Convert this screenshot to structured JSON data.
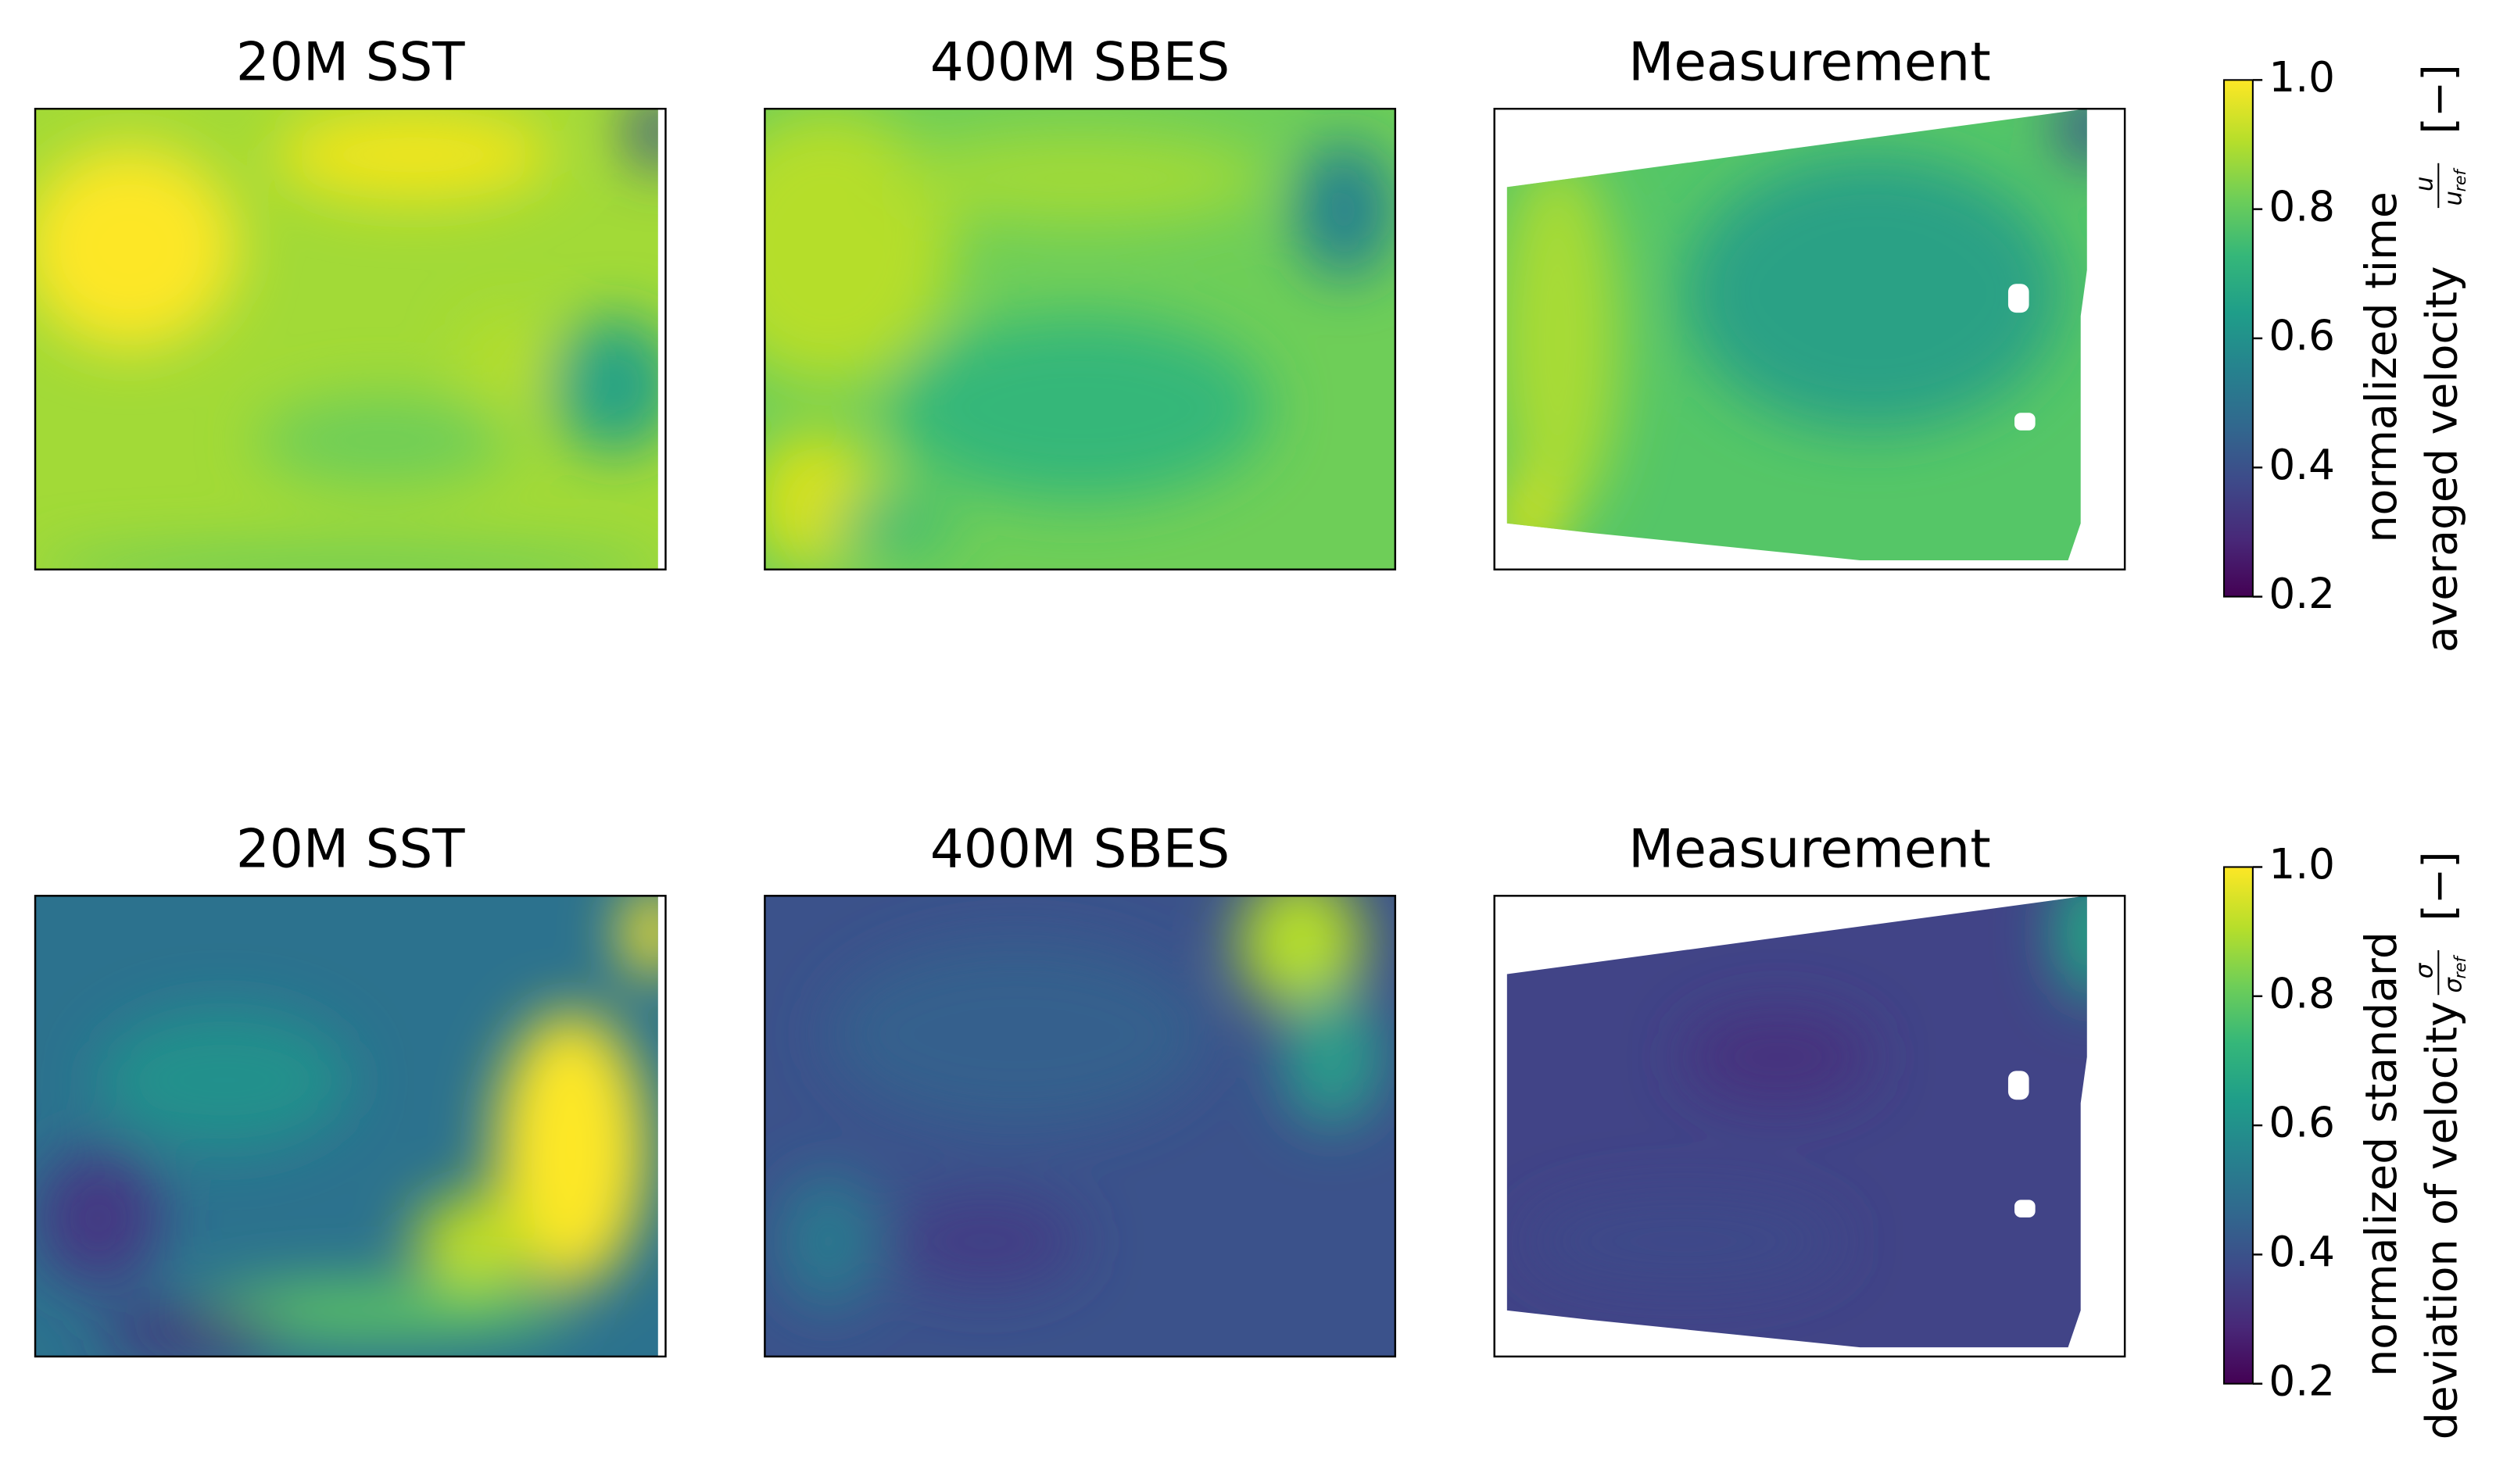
{
  "chart_data": [
    {
      "type": "heatmap",
      "panels": [
        {
          "title": "20M SST"
        },
        {
          "title": "400M SBES"
        },
        {
          "title": "Measurement"
        }
      ],
      "colorbar": {
        "label_lines": [
          "normalized time",
          "averaged velocity"
        ],
        "numerator": "u",
        "denominator": "u",
        "denominator_sub": "ref",
        "unit": "[−]",
        "lim": [
          0.2,
          1.0
        ],
        "ticks": [
          {
            "value": 0.2,
            "label": "0.2"
          },
          {
            "value": 0.4,
            "label": "0.4"
          },
          {
            "value": 0.6,
            "label": "0.6"
          },
          {
            "value": 0.8,
            "label": "0.8"
          },
          {
            "value": 1.0,
            "label": "1.0"
          }
        ]
      }
    },
    {
      "type": "heatmap",
      "panels": [
        {
          "title": "20M SST"
        },
        {
          "title": "400M SBES"
        },
        {
          "title": "Measurement"
        }
      ],
      "colorbar": {
        "label_lines": [
          "normalized standard",
          "deviation of velocity"
        ],
        "numerator": "σ",
        "denominator": "σ",
        "denominator_sub": "ref",
        "unit": "[−]",
        "lim": [
          0.2,
          1.0
        ],
        "ticks": [
          {
            "value": 0.2,
            "label": "0.2"
          },
          {
            "value": 0.4,
            "label": "0.4"
          },
          {
            "value": 0.6,
            "label": "0.6"
          },
          {
            "value": 0.8,
            "label": "0.8"
          },
          {
            "value": 1.0,
            "label": "1.0"
          }
        ]
      }
    }
  ]
}
